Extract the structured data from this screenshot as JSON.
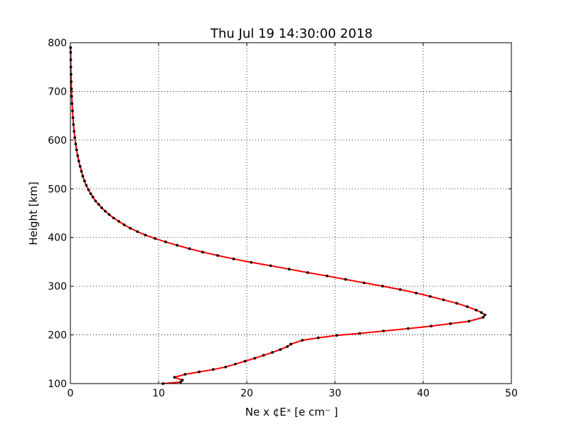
{
  "chart_data": {
    "type": "line",
    "title": "Thu Jul 19 14:30:00 2018",
    "xlabel": "Ne x ¢Eˣ  [e cm⁻ ]",
    "ylabel": "Height [km]",
    "xlim": [
      0,
      50
    ],
    "ylim": [
      100,
      800
    ],
    "xticks": [
      0,
      10,
      20,
      30,
      40,
      50
    ],
    "yticks": [
      100,
      200,
      300,
      400,
      500,
      600,
      700,
      800
    ],
    "grid": true,
    "series": [
      {
        "color": "#ff0000",
        "marker_color": "#000000",
        "points": [
          [
            10.5,
            100
          ],
          [
            12.5,
            103
          ],
          [
            12.7,
            107
          ],
          [
            11.8,
            113
          ],
          [
            13.0,
            119
          ],
          [
            14.6,
            124
          ],
          [
            16.2,
            129
          ],
          [
            17.6,
            134
          ],
          [
            18.7,
            140
          ],
          [
            19.8,
            146
          ],
          [
            20.9,
            152
          ],
          [
            21.9,
            158
          ],
          [
            22.9,
            164
          ],
          [
            23.8,
            170
          ],
          [
            24.6,
            176
          ],
          [
            25.0,
            181
          ],
          [
            26.3,
            189
          ],
          [
            28.1,
            194
          ],
          [
            30.2,
            199
          ],
          [
            32.8,
            203
          ],
          [
            35.5,
            208
          ],
          [
            38.3,
            213
          ],
          [
            40.9,
            218
          ],
          [
            43.1,
            223
          ],
          [
            45.2,
            228
          ],
          [
            46.8,
            236
          ],
          [
            47.0,
            241
          ],
          [
            46.6,
            246
          ],
          [
            46.0,
            251
          ],
          [
            45.0,
            258
          ],
          [
            43.8,
            265
          ],
          [
            42.3,
            272
          ],
          [
            40.8,
            279
          ],
          [
            39.2,
            286
          ],
          [
            37.4,
            293
          ],
          [
            35.4,
            300
          ],
          [
            33.3,
            307
          ],
          [
            31.2,
            314
          ],
          [
            29.1,
            321
          ],
          [
            26.9,
            328
          ],
          [
            24.8,
            335
          ],
          [
            22.7,
            342
          ],
          [
            20.5,
            349
          ],
          [
            18.5,
            356
          ],
          [
            16.7,
            363
          ],
          [
            15.0,
            370
          ],
          [
            13.5,
            377
          ],
          [
            12.1,
            384
          ],
          [
            10.8,
            391
          ],
          [
            9.6,
            398
          ],
          [
            8.5,
            405
          ],
          [
            7.6,
            412
          ],
          [
            6.8,
            419
          ],
          [
            6.1,
            426
          ],
          [
            5.5,
            433
          ],
          [
            4.9,
            440
          ],
          [
            4.4,
            447
          ],
          [
            3.95,
            454
          ],
          [
            3.55,
            461
          ],
          [
            3.2,
            468
          ],
          [
            2.85,
            475
          ],
          [
            2.55,
            483
          ],
          [
            2.3,
            490
          ],
          [
            2.05,
            498
          ],
          [
            1.8,
            507
          ],
          [
            1.6,
            516
          ],
          [
            1.4,
            526
          ],
          [
            1.25,
            536
          ],
          [
            1.1,
            546
          ],
          [
            0.95,
            557
          ],
          [
            0.82,
            568
          ],
          [
            0.7,
            580
          ],
          [
            0.6,
            592
          ],
          [
            0.5,
            605
          ],
          [
            0.42,
            618
          ],
          [
            0.35,
            632
          ],
          [
            0.29,
            646
          ],
          [
            0.24,
            660
          ],
          [
            0.19,
            675
          ],
          [
            0.15,
            690
          ],
          [
            0.12,
            705
          ],
          [
            0.09,
            720
          ],
          [
            0.07,
            735
          ],
          [
            0.05,
            750
          ],
          [
            0.04,
            765
          ],
          [
            0.03,
            780
          ],
          [
            0.02,
            790
          ]
        ]
      }
    ]
  }
}
